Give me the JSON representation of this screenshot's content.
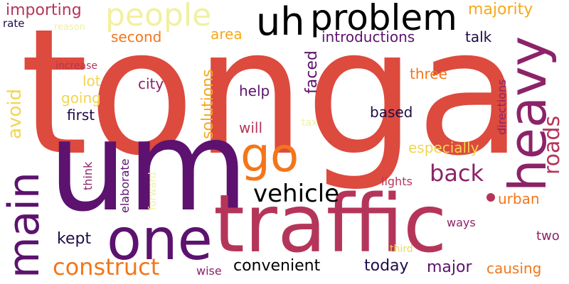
{
  "words": {
    "tonga": "tonga",
    "um": "um",
    "traffic": "traffic",
    "one": "one",
    "heavy": "heavy",
    "main": "main",
    "go": "go",
    "uh": "uh",
    "problem": "problem",
    "people": "people",
    "vehicle": "vehicle",
    "back": "back",
    "construct": "construct",
    "roads": "roads",
    "importing": "importing",
    "majority": "majority",
    "rate": "rate",
    "reason": "reason",
    "second": "second",
    "area": "area",
    "introductions": "introductions",
    "talk": "talk",
    "avoid": "avoid",
    "increase": "increase",
    "lot": "lot",
    "city": "city",
    "going": "going",
    "first": "first",
    "help": "help",
    "solutions": "solutions",
    "faced": "faced",
    "three": "three",
    "directions": "directions",
    "based": "based",
    "will": "will",
    "tax": "tax",
    "especially": "especially",
    "think": "think",
    "elaborate": "elaborate",
    "forward": "forward",
    "lights": "lights",
    "urban": "urban",
    "kept": "kept",
    "ways": "ways",
    "two": "two",
    "convenient": "convenient",
    "today": "today",
    "major": "major",
    "causing": "causing",
    "wise": "wise",
    "third": "third"
  },
  "colors": {
    "background": "#ffffff",
    "dark": "#1f0c48",
    "purple": "#5c126e",
    "magenta": "#8c2369",
    "rose": "#b5355a",
    "red": "#dd4a3e",
    "orange": "#f3761a",
    "gold": "#f7a81a",
    "yellow": "#f2d64d",
    "pale": "#f2f0a0",
    "black": "#000004"
  }
}
